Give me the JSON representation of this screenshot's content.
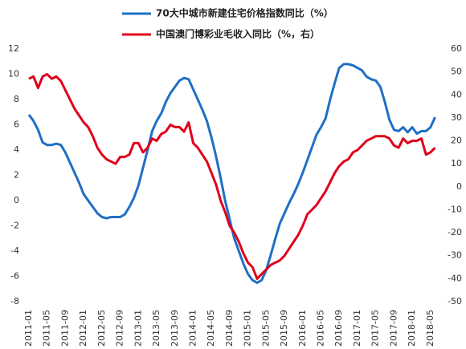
{
  "chart_data": {
    "type": "line",
    "categories": [
      "2011-01",
      null,
      null,
      null,
      "2011-05",
      null,
      null,
      null,
      "2011-09",
      null,
      null,
      null,
      "2012-01",
      null,
      null,
      null,
      "2012-05",
      null,
      null,
      null,
      "2012-09",
      null,
      null,
      null,
      "2013-01",
      null,
      null,
      null,
      "2013-05",
      null,
      null,
      null,
      "2013-09",
      null,
      null,
      null,
      "2014-01",
      null,
      null,
      null,
      "2014-05",
      null,
      null,
      null,
      "2014-09",
      null,
      null,
      null,
      "2015-01",
      null,
      null,
      null,
      "2015-05",
      null,
      null,
      null,
      "2015-09",
      null,
      null,
      null,
      "2016-01",
      null,
      null,
      null,
      "2016-05",
      null,
      null,
      null,
      "2016-09",
      null,
      null,
      null,
      "2017-01",
      null,
      null,
      null,
      "2017-05",
      null,
      null,
      null,
      "2017-09",
      null,
      null,
      null,
      "2018-01",
      null,
      null,
      null,
      "2018-05",
      null
    ],
    "series": [
      {
        "name": "70大中城市新建住宅价格指数同比（%）",
        "color": "#1f6fc4",
        "axis": "y",
        "values": [
          6.8,
          6.3,
          5.6,
          4.6,
          4.4,
          4.4,
          4.5,
          4.4,
          3.8,
          3.0,
          2.2,
          1.4,
          0.5,
          0.0,
          -0.5,
          -1.0,
          -1.3,
          -1.4,
          -1.3,
          -1.3,
          -1.3,
          -1.1,
          -0.5,
          0.2,
          1.2,
          2.6,
          4.0,
          5.5,
          6.3,
          6.9,
          7.8,
          8.5,
          9.0,
          9.5,
          9.7,
          9.6,
          8.8,
          8.0,
          7.2,
          6.3,
          5.0,
          3.5,
          1.8,
          0.0,
          -1.5,
          -3.0,
          -4.0,
          -5.0,
          -5.8,
          -6.3,
          -6.5,
          -6.3,
          -5.5,
          -4.3,
          -3.0,
          -1.8,
          -1.0,
          -0.2,
          0.5,
          1.3,
          2.2,
          3.2,
          4.2,
          5.2,
          5.8,
          6.5,
          8.0,
          9.3,
          10.5,
          10.8,
          10.8,
          10.7,
          10.5,
          10.3,
          9.8,
          9.6,
          9.5,
          9.0,
          7.8,
          6.4,
          5.6,
          5.5,
          5.8,
          5.4,
          5.8,
          5.3,
          5.5,
          5.5,
          5.8,
          6.6
        ]
      },
      {
        "name": "中国澳门博彩业毛收入同比（%，右）",
        "color": "#e0001b",
        "axis": "y2",
        "values": [
          47,
          48,
          43,
          48,
          49,
          47,
          48,
          46,
          42,
          38,
          34,
          31,
          28,
          26,
          22,
          17,
          14,
          12,
          11,
          10,
          13,
          13,
          14,
          19,
          19,
          15,
          17,
          21,
          20,
          23,
          24,
          27,
          26,
          26,
          24,
          28,
          19,
          17,
          14,
          11,
          6,
          1,
          -6,
          -11,
          -17,
          -20,
          -24,
          -29,
          -33,
          -35,
          -40,
          -38,
          -36,
          -34,
          -33,
          -32,
          -30,
          -27,
          -24,
          -21,
          -17,
          -12,
          -10,
          -8,
          -5,
          -2,
          2,
          6,
          9,
          11,
          12,
          15,
          16,
          18,
          20,
          21,
          22,
          22,
          22,
          21,
          18,
          17,
          21,
          19,
          20,
          20,
          21,
          14,
          15,
          17
        ]
      }
    ],
    "ylim": [
      -8,
      12
    ],
    "yticks": [
      -8,
      -6,
      -4,
      -2,
      0,
      2,
      4,
      6,
      8,
      10,
      12
    ],
    "y2lim": [
      -50,
      60
    ],
    "y2ticks": [
      -50,
      -40,
      -30,
      -20,
      -10,
      0,
      10,
      20,
      30,
      40,
      50,
      60
    ],
    "grid": false
  }
}
